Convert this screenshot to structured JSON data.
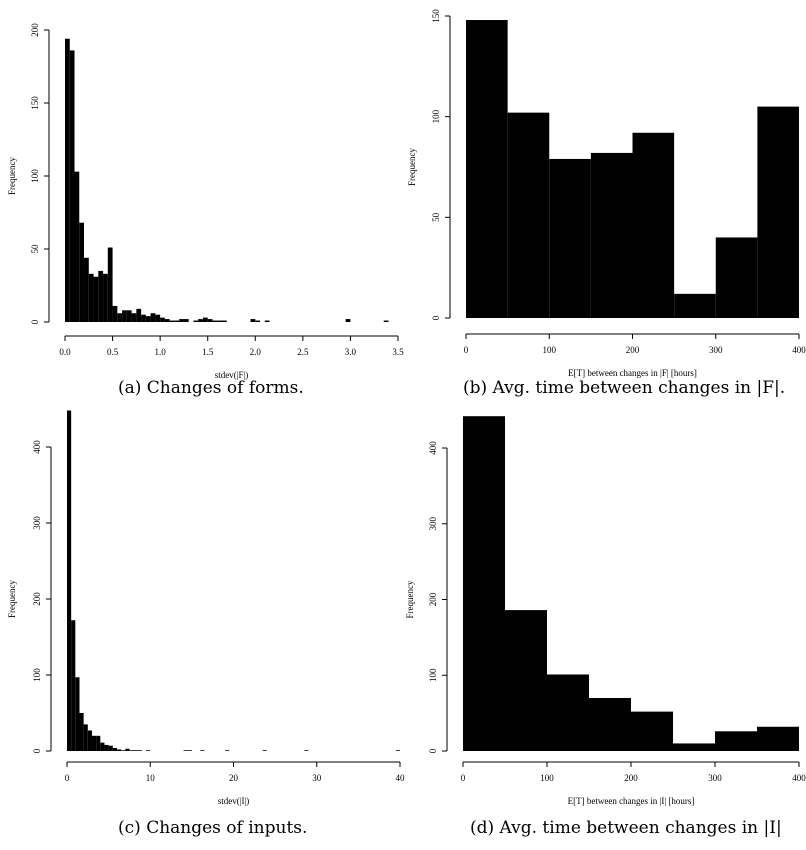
{
  "captions": {
    "a": "(a) Changes of forms.",
    "b": "(b) Avg. time between changes in |F|.",
    "c": "(c) Changes of inputs.",
    "d": "(d) Avg. time between changes in |I|"
  },
  "chart_data": [
    {
      "id": "a",
      "type": "bar",
      "xlabel": "stdev(|F|)",
      "ylabel": "Frequency",
      "xlim": [
        0,
        3.5
      ],
      "ylim": [
        0,
        200
      ],
      "xticks": [
        0.0,
        0.5,
        1.0,
        1.5,
        2.0,
        2.5,
        3.0,
        3.5
      ],
      "xtick_labels": [
        "0.0",
        "0.5",
        "1.0",
        "1.5",
        "2.0",
        "2.5",
        "3.0",
        "3.5"
      ],
      "yticks": [
        0,
        50,
        100,
        150,
        200
      ],
      "ytick_labels": [
        "0",
        "50",
        "100",
        "150",
        "200"
      ],
      "bin_width": 0.05,
      "bin_start": 0.0,
      "values": [
        194,
        186,
        103,
        68,
        44,
        33,
        31,
        35,
        33,
        51,
        11,
        6,
        8,
        8,
        6,
        9,
        5,
        4,
        6,
        5,
        3,
        2,
        1,
        1,
        2,
        2,
        0,
        1,
        2,
        3,
        2,
        1,
        1,
        1,
        0,
        0,
        0,
        0,
        0,
        2,
        1,
        0,
        1,
        0,
        0,
        0,
        0,
        0,
        0,
        0,
        0,
        0,
        0,
        0,
        0,
        0,
        0,
        0,
        0,
        2,
        0,
        0,
        0,
        0,
        0,
        0,
        0,
        1
      ]
    },
    {
      "id": "b",
      "type": "bar",
      "xlabel": "E[T] between changes in |F| [hours]",
      "ylabel": "Frequency",
      "xlim": [
        0,
        400
      ],
      "ylim": [
        0,
        150
      ],
      "xticks": [
        0,
        100,
        200,
        300,
        400
      ],
      "xtick_labels": [
        "0",
        "100",
        "200",
        "300",
        "400"
      ],
      "yticks": [
        0,
        50,
        100,
        150
      ],
      "ytick_labels": [
        "0",
        "50",
        "100",
        "150"
      ],
      "bin_width": 50,
      "bin_start": 0,
      "values": [
        148,
        102,
        79,
        82,
        92,
        12,
        40,
        105
      ]
    },
    {
      "id": "c",
      "type": "bar",
      "xlabel": "stdev(|I|)",
      "ylabel": "Frequency",
      "xlim": [
        0,
        40
      ],
      "ylim": [
        0,
        400
      ],
      "xticks": [
        0,
        10,
        20,
        30,
        40
      ],
      "xtick_labels": [
        "0",
        "10",
        "20",
        "30",
        "40"
      ],
      "yticks": [
        0,
        100,
        200,
        300,
        400
      ],
      "ytick_labels": [
        "0",
        "100",
        "200",
        "300",
        "400"
      ],
      "bin_width": 0.5,
      "bin_start": 0,
      "values": [
        448,
        172,
        97,
        50,
        35,
        27,
        20,
        20,
        11,
        8,
        7,
        4,
        2,
        1,
        3,
        1,
        1,
        1,
        0,
        1,
        0,
        0,
        0,
        0,
        0,
        0,
        0,
        0,
        1,
        1,
        0,
        0,
        1,
        0,
        0,
        0,
        0,
        0,
        1,
        0,
        0,
        0,
        0,
        0,
        0,
        0,
        0,
        1,
        0,
        0,
        0,
        0,
        0,
        0,
        0,
        0,
        0,
        1,
        0,
        0,
        0,
        0,
        0,
        0,
        0,
        0,
        0,
        0,
        0,
        0,
        0,
        0,
        0,
        0,
        0,
        0,
        0,
        0,
        0,
        1
      ]
    },
    {
      "id": "d",
      "type": "bar",
      "xlabel": "E[T] between changes in |I| [hours]",
      "ylabel": "Frequency",
      "xlim": [
        0,
        400
      ],
      "ylim": [
        0,
        400
      ],
      "xticks": [
        0,
        100,
        200,
        300,
        400
      ],
      "xtick_labels": [
        "0",
        "100",
        "200",
        "300",
        "400"
      ],
      "yticks": [
        0,
        100,
        200,
        300,
        400
      ],
      "ytick_labels": [
        "0",
        "100",
        "200",
        "300",
        "400"
      ],
      "bin_width": 50,
      "bin_start": 0,
      "values": [
        442,
        186,
        101,
        70,
        52,
        10,
        26,
        32
      ]
    }
  ]
}
